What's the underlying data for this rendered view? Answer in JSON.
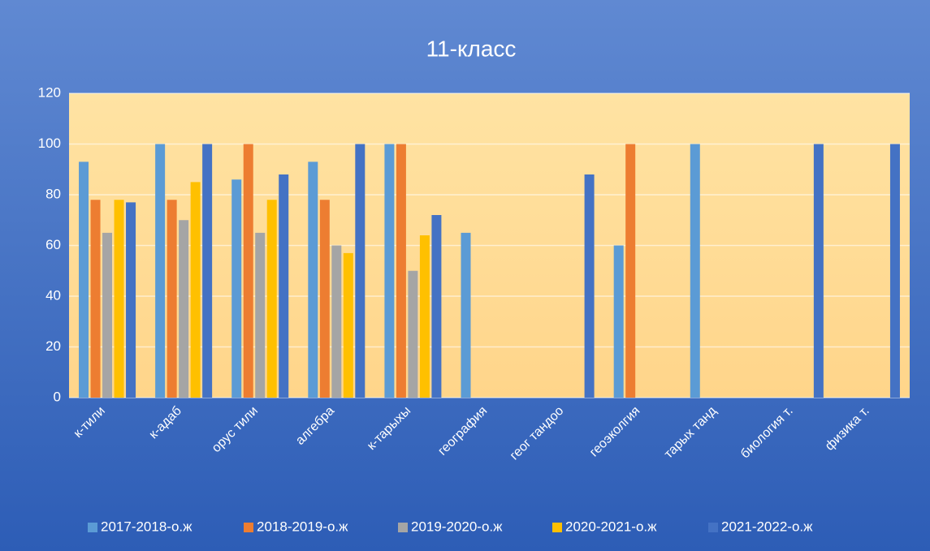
{
  "chart_data": {
    "type": "bar",
    "title": "11-класс",
    "categories": [
      "к-тили",
      "к-адаб",
      "орус тили",
      "алгебра",
      "к-тарыхы",
      "география",
      "геог тандоо",
      "геоэколгия",
      "тарых танд",
      "биология т.",
      "физика т."
    ],
    "series": [
      {
        "name": "2017-2018-о.ж",
        "color": "#5b9bd5",
        "values": [
          93,
          100,
          86,
          93,
          100,
          65,
          null,
          60,
          100,
          null,
          null
        ]
      },
      {
        "name": "2018-2019-о.ж",
        "color": "#ed7d31",
        "values": [
          78,
          78,
          100,
          78,
          100,
          null,
          null,
          100,
          null,
          null,
          null
        ]
      },
      {
        "name": "2019-2020-о.ж",
        "color": "#a5a5a5",
        "values": [
          65,
          70,
          65,
          60,
          50,
          null,
          null,
          null,
          null,
          null,
          null
        ]
      },
      {
        "name": "2020-2021-о.ж",
        "color": "#ffc000",
        "values": [
          78,
          85,
          78,
          57,
          64,
          null,
          null,
          null,
          null,
          null,
          null
        ]
      },
      {
        "name": "2021-2022-о.ж",
        "color": "#4472c4",
        "values": [
          77,
          100,
          88,
          100,
          72,
          null,
          88,
          null,
          null,
          100,
          100
        ]
      }
    ],
    "ylim": [
      0,
      120
    ],
    "yticks": [
      0,
      20,
      40,
      60,
      80,
      100,
      120
    ],
    "grid": true,
    "legend": "bottom"
  }
}
